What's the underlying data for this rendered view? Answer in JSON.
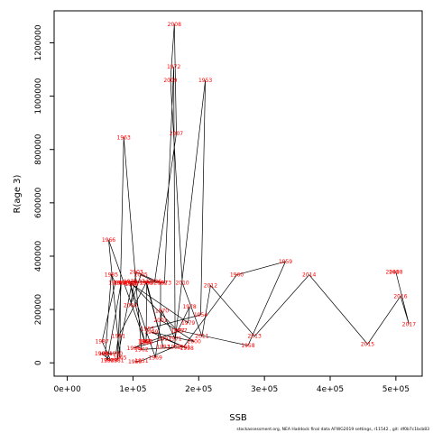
{
  "chart_data": {
    "type": "line",
    "xlabel": "SSB",
    "ylabel": "R(age 3)",
    "xlim": [
      -20000,
      540000
    ],
    "ylim": [
      -50000,
      1320000
    ],
    "grid": false,
    "legend": "none",
    "line_color": "#000000",
    "label_color": "#ff0000",
    "x_ticks": [
      {
        "value": 0,
        "label": "0e+00"
      },
      {
        "value": 100000,
        "label": "1e+05"
      },
      {
        "value": 200000,
        "label": "2e+05"
      },
      {
        "value": 300000,
        "label": "3e+05"
      },
      {
        "value": 400000,
        "label": "4e+05"
      },
      {
        "value": 500000,
        "label": "5e+05"
      }
    ],
    "y_ticks": [
      {
        "value": 0,
        "label": "0"
      },
      {
        "value": 200000,
        "label": "200000"
      },
      {
        "value": 400000,
        "label": "400000"
      },
      {
        "value": 600000,
        "label": "600000"
      },
      {
        "value": 800000,
        "label": "800000"
      },
      {
        "value": 1000000,
        "label": "1000000"
      },
      {
        "value": 1200000,
        "label": "1200000"
      }
    ],
    "points": [
      {
        "year": "1950",
        "ssb": 103000,
        "rec": 4000
      },
      {
        "year": "1951",
        "ssb": 113000,
        "rec": 8000
      },
      {
        "year": "1952",
        "ssb": 163000,
        "rec": 60000
      },
      {
        "year": "1953",
        "ssb": 210000,
        "rec": 1060000
      },
      {
        "year": "1954",
        "ssb": 203000,
        "rec": 180000
      },
      {
        "year": "1955",
        "ssb": 122000,
        "rec": 128000
      },
      {
        "year": "1956",
        "ssb": 119000,
        "rec": 75000
      },
      {
        "year": "1957",
        "ssb": 172000,
        "rec": 120000
      },
      {
        "year": "1958",
        "ssb": 275000,
        "rec": 65000
      },
      {
        "year": "1959",
        "ssb": 332000,
        "rec": 380000
      },
      {
        "year": "1960",
        "ssb": 258000,
        "rec": 330000
      },
      {
        "year": "1961",
        "ssb": 177000,
        "rec": 60000
      },
      {
        "year": "1962",
        "ssb": 113000,
        "rec": 50000
      },
      {
        "year": "1963",
        "ssb": 86000,
        "rec": 845000
      },
      {
        "year": "1964",
        "ssb": 81000,
        "rec": 300000
      },
      {
        "year": "1965",
        "ssb": 80000,
        "rec": 20000
      },
      {
        "year": "1966",
        "ssb": 63000,
        "rec": 460000
      },
      {
        "year": "1967",
        "ssb": 118000,
        "rec": 80000
      },
      {
        "year": "1968",
        "ssb": 95000,
        "rec": 300000
      },
      {
        "year": "1969",
        "ssb": 134000,
        "rec": 20000
      },
      {
        "year": "1970",
        "ssb": 144000,
        "rec": 195000
      },
      {
        "year": "1971",
        "ssb": 164000,
        "rec": 90000
      },
      {
        "year": "1972",
        "ssb": 162000,
        "rec": 1110000
      },
      {
        "year": "1973",
        "ssb": 148000,
        "rec": 300000
      },
      {
        "year": "1974",
        "ssb": 113000,
        "rec": 305000
      },
      {
        "year": "1975",
        "ssb": 96000,
        "rec": 305000
      },
      {
        "year": "1976",
        "ssb": 97000,
        "rec": 300000
      },
      {
        "year": "1977",
        "ssb": 168000,
        "rec": 120000
      },
      {
        "year": "1978",
        "ssb": 186000,
        "rec": 210000
      },
      {
        "year": "1979",
        "ssb": 184000,
        "rec": 150000
      },
      {
        "year": "1980",
        "ssb": 98000,
        "rec": 295000
      },
      {
        "year": "1981",
        "ssb": 76000,
        "rec": 10000
      },
      {
        "year": "1982",
        "ssb": 82000,
        "rec": 300000
      },
      {
        "year": "1983",
        "ssb": 61000,
        "rec": 10000
      },
      {
        "year": "1984",
        "ssb": 58000,
        "rec": 35000
      },
      {
        "year": "1985",
        "ssb": 67000,
        "rec": 330000
      },
      {
        "year": "1986",
        "ssb": 73000,
        "rec": 300000
      },
      {
        "year": "1987",
        "ssb": 53000,
        "rec": 80000
      },
      {
        "year": "1988",
        "ssb": 66000,
        "rec": 10000
      },
      {
        "year": "1989",
        "ssb": 52000,
        "rec": 35000
      },
      {
        "year": "1990",
        "ssb": 74000,
        "rec": 35000
      },
      {
        "year": "1991",
        "ssb": 78000,
        "rec": 100000
      },
      {
        "year": "1992",
        "ssb": 120000,
        "rec": 300000
      },
      {
        "year": "1993",
        "ssb": 146000,
        "rec": 60000
      },
      {
        "year": "1994",
        "ssb": 121000,
        "rec": 300000
      },
      {
        "year": "1995",
        "ssb": 120000,
        "rec": 80000
      },
      {
        "year": "1996",
        "ssb": 101000,
        "rec": 55000
      },
      {
        "year": "1997",
        "ssb": 148000,
        "rec": 90000
      },
      {
        "year": "1998",
        "ssb": 182000,
        "rec": 55000
      },
      {
        "year": "1999",
        "ssb": 128000,
        "rec": 115000
      },
      {
        "year": "2000",
        "ssb": 193000,
        "rec": 80000
      },
      {
        "year": "2001",
        "ssb": 142000,
        "rec": 160000
      },
      {
        "year": "2002",
        "ssb": 142000,
        "rec": 300000
      },
      {
        "year": "2003",
        "ssb": 105000,
        "rec": 340000
      },
      {
        "year": "2004",
        "ssb": 96000,
        "rec": 215000
      },
      {
        "year": "2005",
        "ssb": 112000,
        "rec": 330000
      },
      {
        "year": "2006",
        "ssb": 133000,
        "rec": 305000
      },
      {
        "year": "2007",
        "ssb": 166000,
        "rec": 860000
      },
      {
        "year": "2008",
        "ssb": 163000,
        "rec": 1270000
      },
      {
        "year": "2009",
        "ssb": 157000,
        "rec": 1060000
      },
      {
        "year": "2010",
        "ssb": 175000,
        "rec": 300000
      },
      {
        "year": "2011",
        "ssb": 205000,
        "rec": 100000
      },
      {
        "year": "2012",
        "ssb": 218000,
        "rec": 290000
      },
      {
        "year": "2013",
        "ssb": 285000,
        "rec": 100000
      },
      {
        "year": "2014",
        "ssb": 368000,
        "rec": 330000
      },
      {
        "year": "2015",
        "ssb": 457000,
        "rec": 70000
      },
      {
        "year": "2016",
        "ssb": 507000,
        "rec": 250000
      },
      {
        "year": "2017",
        "ssb": 520000,
        "rec": 145000
      },
      {
        "year": "2018",
        "ssb": 500000,
        "rec": 340000
      },
      {
        "year": "2019",
        "ssb": 495000,
        "rec": 340000
      }
    ]
  },
  "footer": {
    "note": "stockassessment.org, NEA Haddock final data AFWG2019 settings, r11542 , git: df0b7c1bcb83"
  }
}
